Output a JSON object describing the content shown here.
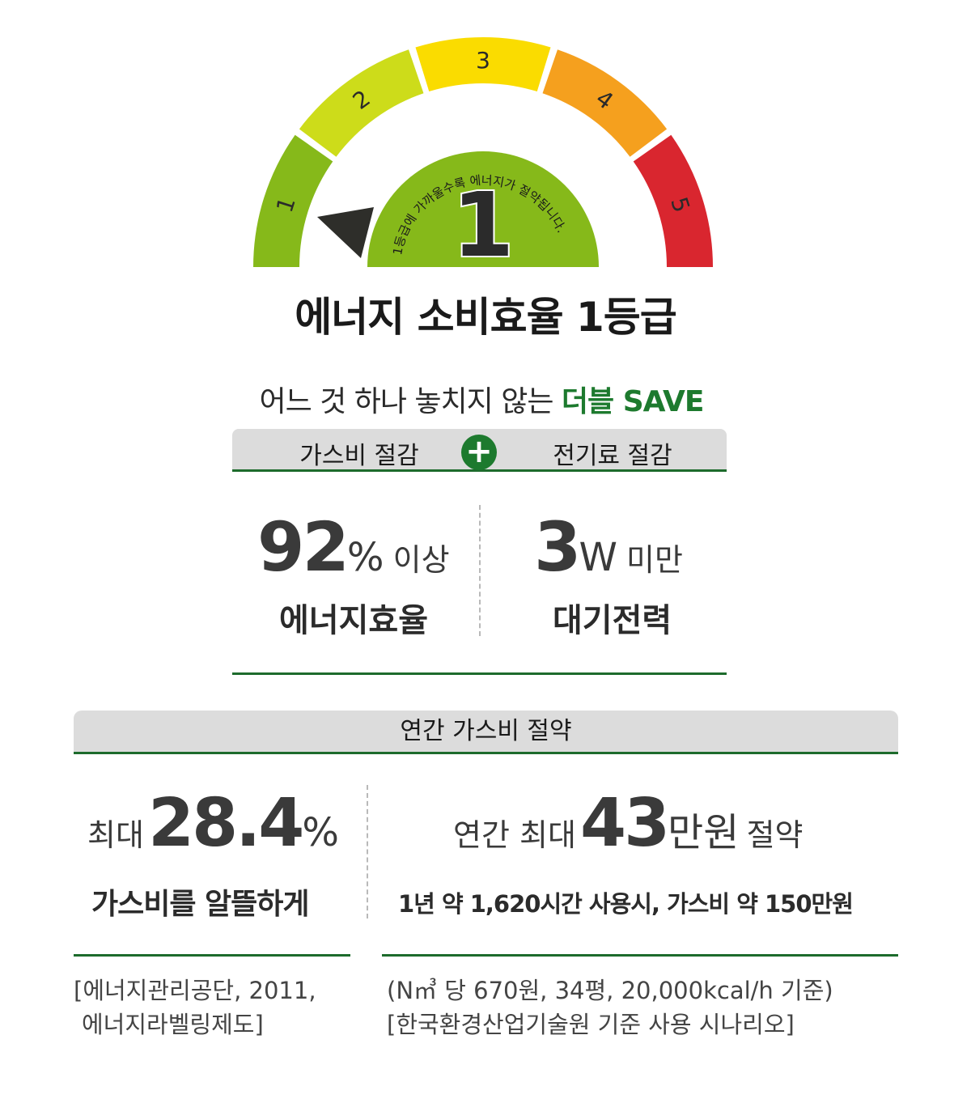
{
  "gauge": {
    "segments": [
      {
        "label": "1",
        "color": "#86b91a"
      },
      {
        "label": "2",
        "color": "#cddc1a"
      },
      {
        "label": "3",
        "color": "#fadc00"
      },
      {
        "label": "4",
        "color": "#f5a01e"
      },
      {
        "label": "5",
        "color": "#d9262f"
      }
    ],
    "center_grade": "1",
    "center_color": "#86b91a",
    "arc_text": "1등급에 가까울수록 에너지가 절약됩니다."
  },
  "title": "에너지 소비효율 1등급",
  "slogan": {
    "prefix": "어느 것 하나 놓치지 않는 ",
    "highlight": "더블 SAVE"
  },
  "tabs": {
    "left": "가스비 절감",
    "plus": "+",
    "right": "전기료 절감"
  },
  "stats": {
    "left": {
      "number": "92",
      "unit": "%",
      "suffix": "이상",
      "label": "에너지효율"
    },
    "right": {
      "number": "3",
      "unit": "W",
      "suffix": "미만",
      "label": "대기전력"
    }
  },
  "annual": {
    "title": "연간 가스비 절약",
    "left": {
      "prefix": "최대",
      "number": "28.4",
      "unit": "%",
      "caption": "가스비를 알뜰하게"
    },
    "right": {
      "prefix": "연간 최대",
      "number": "43",
      "unit": "만원",
      "suffix": "절약",
      "caption": "1년 약 1,620시간 사용시, 가스비 약 150만원"
    }
  },
  "notes": {
    "left": [
      "[에너지관리공단, 2011,",
      "에너지라벨링제도]"
    ],
    "right": [
      "(N㎥ 당 670원, 34평, 20,000kcal/h 기준)",
      "[한국환경산업기술원 기준 사용 시나리오]"
    ]
  },
  "colors": {
    "accent": "#1d7a2e",
    "divider": "#1d6b2c",
    "tab_bg": "#dcdcdc"
  }
}
